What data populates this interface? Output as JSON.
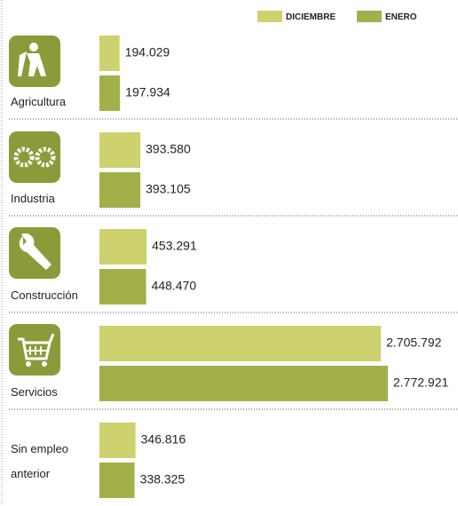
{
  "chart_data": {
    "type": "hbar",
    "categories": [
      "Agricultura",
      "Industria",
      "Construcción",
      "Servicios",
      "Sin empleo anterior"
    ],
    "series": [
      {
        "name": "DICIEMBRE",
        "color": "#cdd16e",
        "values": [
          194029,
          393580,
          453291,
          2705792,
          346816
        ],
        "value_labels": [
          "194.029",
          "393.580",
          "453.291",
          "2.705.792",
          "346.816"
        ]
      },
      {
        "name": "ENERO",
        "color": "#a3b04a",
        "values": [
          197934,
          393105,
          448470,
          2772921,
          338325
        ],
        "value_labels": [
          "197.934",
          "393.105",
          "448.470",
          "2.772.921",
          "338.325"
        ]
      }
    ]
  }
}
